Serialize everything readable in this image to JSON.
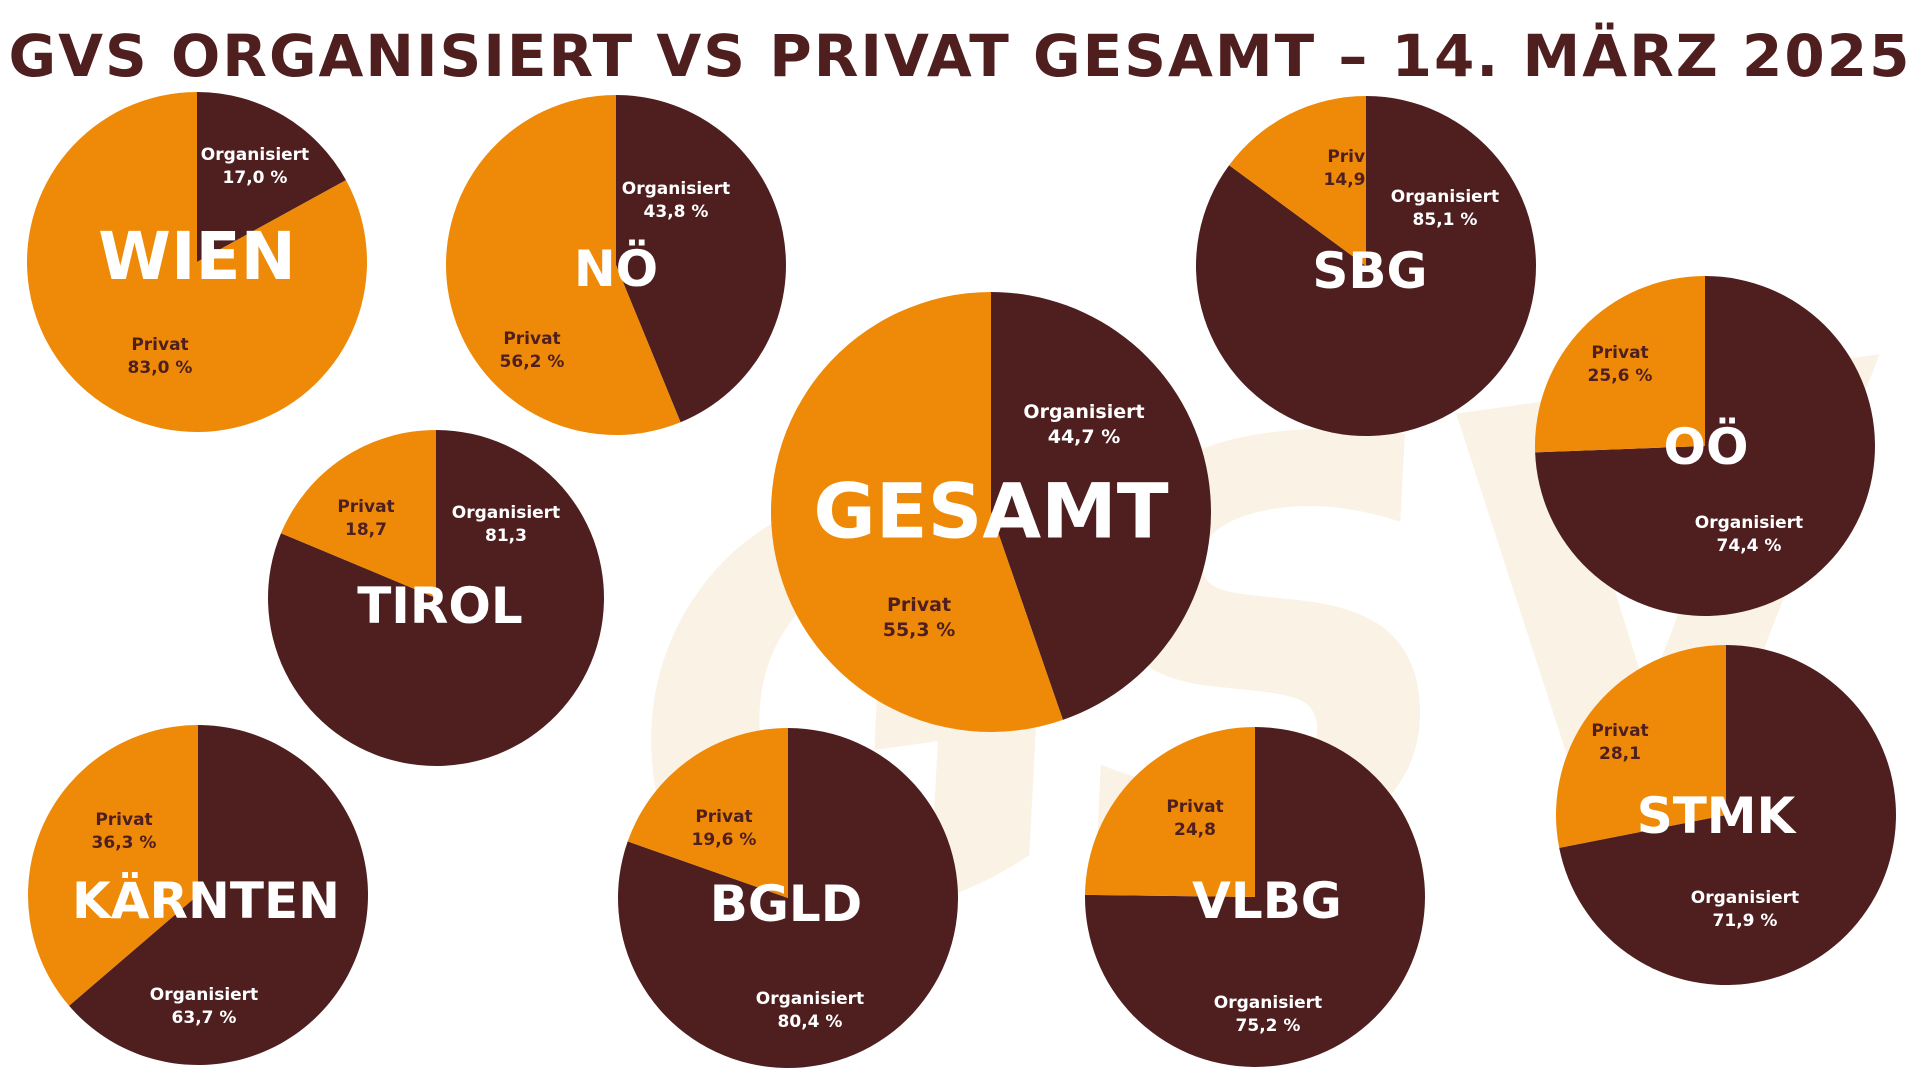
{
  "title": "GVS ORGANISIERT VS PRIVAT GESAMT – 14. MÄRZ 2025",
  "watermark": "GSV",
  "colors": {
    "organisiert": "#4f1f20",
    "privat": "#ee8a07",
    "label_dark": "#4f1f20",
    "label_light": "#ffffff"
  },
  "chart_data": [
    {
      "type": "pie",
      "title": "WIEN",
      "slices": [
        {
          "label": "Organisiert",
          "value": 17.0,
          "display": "17,0 %"
        },
        {
          "label": "Privat",
          "value": 83.0,
          "display": "83,0 %"
        }
      ]
    },
    {
      "type": "pie",
      "title": "NÖ",
      "slices": [
        {
          "label": "Organisiert",
          "value": 43.8,
          "display": "43,8 %"
        },
        {
          "label": "Privat",
          "value": 56.2,
          "display": "56,2 %"
        }
      ]
    },
    {
      "type": "pie",
      "title": "SBG",
      "slices": [
        {
          "label": "Organisiert",
          "value": 85.1,
          "display": "85,1 %"
        },
        {
          "label": "Privat",
          "value": 14.9,
          "display": "14,9 %"
        }
      ]
    },
    {
      "type": "pie",
      "title": "GESAMT",
      "slices": [
        {
          "label": "Organisiert",
          "value": 44.7,
          "display": "44,7 %"
        },
        {
          "label": "Privat",
          "value": 55.3,
          "display": "55,3 %"
        }
      ]
    },
    {
      "type": "pie",
      "title": "OÖ",
      "slices": [
        {
          "label": "Organisiert",
          "value": 74.4,
          "display": "74,4 %"
        },
        {
          "label": "Privat",
          "value": 25.6,
          "display": "25,6 %"
        }
      ]
    },
    {
      "type": "pie",
      "title": "TIROL",
      "slices": [
        {
          "label": "Organisiert",
          "value": 81.3,
          "display": "81,3"
        },
        {
          "label": "Privat",
          "value": 18.7,
          "display": "18,7"
        }
      ]
    },
    {
      "type": "pie",
      "title": "KÄRNTEN",
      "slices": [
        {
          "label": "Organisiert",
          "value": 63.7,
          "display": "63,7 %"
        },
        {
          "label": "Privat",
          "value": 36.3,
          "display": "36,3 %"
        }
      ]
    },
    {
      "type": "pie",
      "title": "BGLD",
      "slices": [
        {
          "label": "Organisiert",
          "value": 80.4,
          "display": "80,4 %"
        },
        {
          "label": "Privat",
          "value": 19.6,
          "display": "19,6 %"
        }
      ]
    },
    {
      "type": "pie",
      "title": "VLBG",
      "slices": [
        {
          "label": "Organisiert",
          "value": 75.2,
          "display": "75,2 %"
        },
        {
          "label": "Privat",
          "value": 24.8,
          "display": "24,8"
        }
      ]
    },
    {
      "type": "pie",
      "title": "STMK",
      "slices": [
        {
          "label": "Organisiert",
          "value": 71.9,
          "display": "71,9 %"
        },
        {
          "label": "Privat",
          "value": 28.1,
          "display": "28,1"
        }
      ]
    }
  ]
}
